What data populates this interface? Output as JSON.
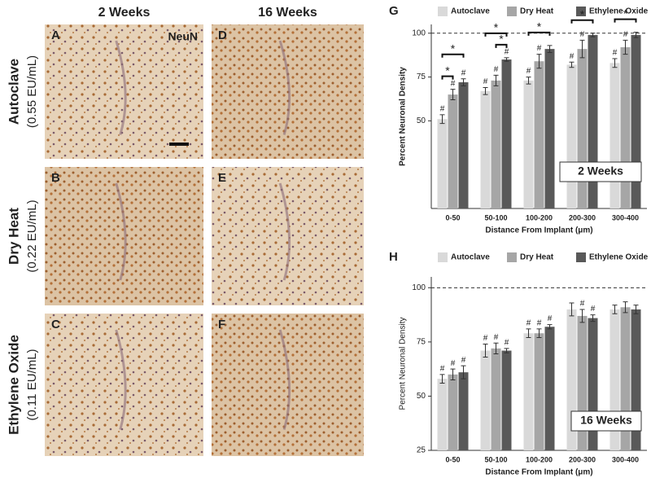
{
  "figure": {
    "columns": [
      "2 Weeks",
      "16 Weeks"
    ],
    "rows": [
      {
        "name": "Autoclave",
        "endotoxin": "(0.55 EU/mL)"
      },
      {
        "name": "Dry Heat",
        "endotoxin": "(0.22 EU/mL)"
      },
      {
        "name": "Ethylene Oxide",
        "endotoxin": "(0.11 EU/mL)"
      }
    ],
    "panels": [
      [
        "A",
        "B",
        "C"
      ],
      [
        "D",
        "E",
        "F"
      ]
    ],
    "stain": "NeuN"
  },
  "chart_data": [
    {
      "type": "bar",
      "panel": "G",
      "inset": "2 Weeks",
      "xlabel": "Distance From Implant (μm)",
      "ylabel": "Percent Neuronal Density",
      "categories": [
        "0-50",
        "50-100",
        "100-200",
        "200-300",
        "300-400"
      ],
      "series": [
        {
          "name": "Autoclave",
          "color": "#d9d9d9",
          "values": [
            51,
            67,
            73,
            82,
            83
          ],
          "errors": [
            2.5,
            2,
            2,
            1.5,
            2.5
          ],
          "markers": [
            "#",
            "#",
            "#",
            "#",
            "#"
          ]
        },
        {
          "name": "Dry Heat",
          "color": "#a6a6a6",
          "values": [
            65,
            73,
            84,
            91,
            92
          ],
          "errors": [
            3,
            3,
            4,
            5,
            4
          ],
          "markers": [
            "#",
            "#",
            "#",
            "#",
            "#"
          ]
        },
        {
          "name": "Ethylene Oxide",
          "color": "#595959",
          "values": [
            72,
            85,
            91,
            99,
            99
          ],
          "errors": [
            2,
            1,
            2,
            1,
            1.5
          ],
          "markers": [
            "#",
            "#",
            null,
            null,
            null
          ]
        }
      ],
      "comparisons": [
        {
          "category": 0,
          "from": 0,
          "to": 1,
          "label": "*"
        },
        {
          "category": 0,
          "from": 0,
          "to": 2,
          "label": "*"
        },
        {
          "category": 1,
          "from": 1,
          "to": 2,
          "label": "*"
        },
        {
          "category": 1,
          "from": 0,
          "to": 2,
          "label": "*"
        },
        {
          "category": 2,
          "from": 0,
          "to": 2,
          "label": "*"
        },
        {
          "category": 3,
          "from": 0,
          "to": 2,
          "label": "*"
        },
        {
          "category": 4,
          "from": 0,
          "to": 2,
          "label": "*"
        }
      ],
      "ylim": [
        0,
        105
      ],
      "yticks": [
        50,
        75,
        100
      ],
      "reference_line": 100,
      "legend": "top"
    },
    {
      "type": "bar",
      "panel": "H",
      "inset": "16 Weeks",
      "xlabel": "Distance From Implant (μm)",
      "ylabel": "Percent Neuronal Density",
      "categories": [
        "0-50",
        "50-100",
        "100-200",
        "200-300",
        "300-400"
      ],
      "series": [
        {
          "name": "Autoclave",
          "color": "#d9d9d9",
          "values": [
            58,
            71,
            79,
            90,
            90
          ],
          "errors": [
            2,
            3,
            2,
            3,
            2
          ],
          "markers": [
            "#",
            "#",
            "#",
            null,
            null
          ]
        },
        {
          "name": "Dry Heat",
          "color": "#a6a6a6",
          "values": [
            60,
            72,
            79,
            87,
            91
          ],
          "errors": [
            2.5,
            2.5,
            2,
            3,
            2.5
          ],
          "markers": [
            "#",
            "#",
            "#",
            "#",
            null
          ]
        },
        {
          "name": "Ethylene Oxide",
          "color": "#595959",
          "values": [
            61,
            71,
            82,
            86,
            90
          ],
          "errors": [
            3,
            1,
            1,
            1.5,
            2
          ],
          "markers": [
            "#",
            "#",
            "#",
            "#",
            null
          ]
        }
      ],
      "comparisons": [],
      "ylim": [
        25,
        105
      ],
      "yticks": [
        25,
        50,
        75,
        100
      ],
      "reference_line": 100,
      "legend": "top"
    }
  ]
}
